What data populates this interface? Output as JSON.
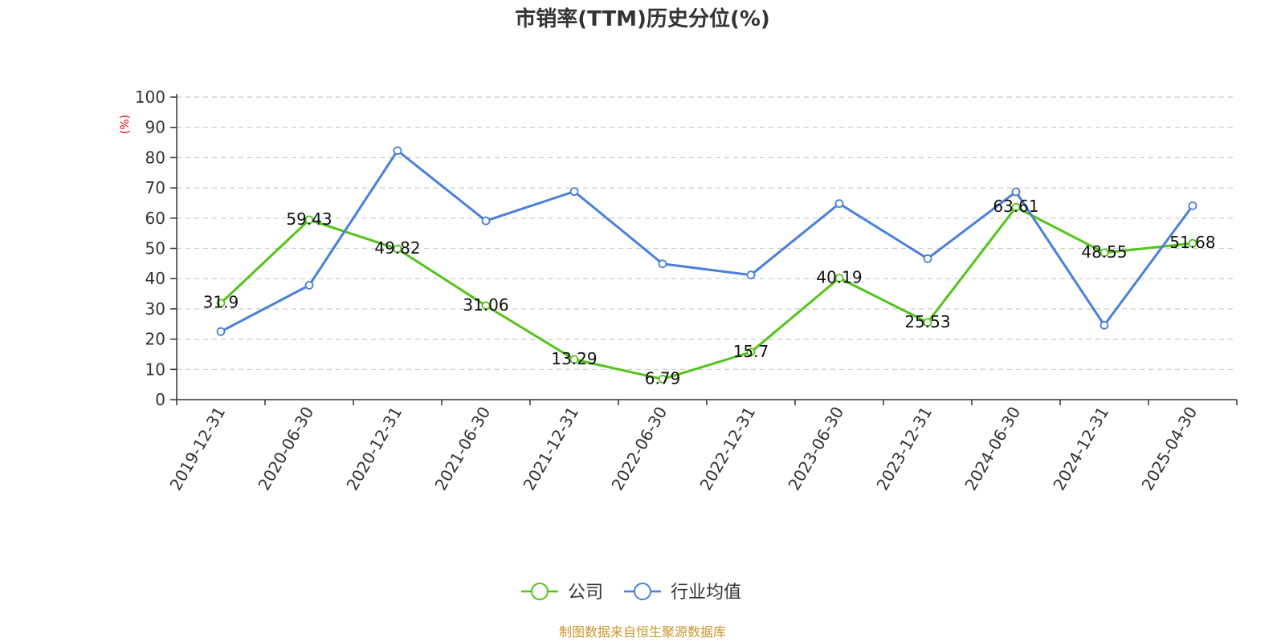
{
  "chart_data": {
    "type": "line",
    "title": "市销率(TTM)历史分位(%)",
    "ylabel": "(%)",
    "ylim": [
      0,
      100
    ],
    "yticks": [
      0,
      10,
      20,
      30,
      40,
      50,
      60,
      70,
      80,
      90,
      100
    ],
    "grid": true,
    "legend_position": "bottom-center",
    "categories": [
      "2019-12-31",
      "2020-06-30",
      "2020-12-31",
      "2021-06-30",
      "2021-12-31",
      "2022-06-30",
      "2022-12-31",
      "2023-06-30",
      "2023-12-31",
      "2024-06-30",
      "2024-12-31",
      "2025-04-30"
    ],
    "series": [
      {
        "name": "公司",
        "color": "#52c41a",
        "values": [
          31.9,
          59.43,
          49.82,
          31.06,
          13.29,
          6.79,
          15.7,
          40.19,
          25.53,
          63.61,
          48.55,
          51.68
        ],
        "labels": [
          "31.9",
          "59.43",
          "49.82",
          "31.06",
          "13.29",
          "6.79",
          "15.7",
          "40.19",
          "25.53",
          "63.61",
          "48.55",
          "51.68"
        ],
        "show_labels": true
      },
      {
        "name": "行业均值",
        "color": "#4a7fdb",
        "values": [
          22.5,
          37.8,
          82.3,
          59.1,
          68.8,
          44.9,
          41.2,
          64.8,
          46.6,
          68.7,
          24.6,
          64.1
        ],
        "show_labels": false
      }
    ],
    "source": "制图数据来自恒生聚源数据库",
    "colors": {
      "axis": "#333333",
      "grid": "#cccccc",
      "unit": "#e00000",
      "source": "#c8962e"
    }
  }
}
